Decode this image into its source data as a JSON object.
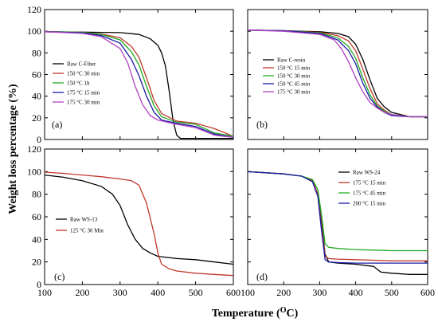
{
  "figure": {
    "ylabel": "Weight loss percentage (%)",
    "xlabel_main": "Temperature (",
    "xlabel_sup": "O",
    "xlabel_tail": "C)"
  },
  "chart_data": [
    {
      "type": "line",
      "panel_label": "(a)",
      "legend_location": "middle-left",
      "xlim": [
        100,
        600
      ],
      "ylim": [
        0,
        120
      ],
      "series": [
        {
          "name": "Raw C-Fiber",
          "color": "#000000",
          "x": [
            100,
            200,
            300,
            350,
            380,
            400,
            410,
            420,
            430,
            440,
            450,
            460,
            500,
            600
          ],
          "y": [
            99.5,
            99.2,
            98.7,
            97,
            93,
            87,
            80,
            68,
            45,
            18,
            4,
            1,
            1,
            1
          ]
        },
        {
          "name": "150 °C 30 min",
          "color": "#c0392b",
          "x": [
            100,
            200,
            250,
            300,
            330,
            350,
            370,
            390,
            410,
            450,
            500,
            550,
            600
          ],
          "y": [
            99.5,
            99,
            97.5,
            94,
            86,
            76,
            57,
            36,
            24,
            17,
            15,
            10,
            3
          ]
        },
        {
          "name": "150 °C 1h",
          "color": "#22aa22",
          "x": [
            100,
            200,
            250,
            300,
            330,
            350,
            370,
            390,
            410,
            450,
            500,
            550,
            600
          ],
          "y": [
            99.5,
            99,
            97,
            92,
            81,
            69,
            49,
            31,
            21,
            16,
            14,
            6,
            3
          ]
        },
        {
          "name": "175 °C 15 min",
          "color": "#1a1aa6",
          "x": [
            100,
            200,
            250,
            300,
            330,
            350,
            370,
            390,
            410,
            450,
            500,
            550,
            600
          ],
          "y": [
            99.5,
            98.5,
            96,
            89,
            74,
            59,
            40,
            25,
            18,
            15,
            12,
            5,
            2
          ]
        },
        {
          "name": "175 °C 30 min",
          "color": "#b040c0",
          "x": [
            100,
            200,
            250,
            300,
            320,
            340,
            360,
            380,
            400,
            450,
            500,
            550,
            600
          ],
          "y": [
            99.5,
            98,
            95,
            84,
            71,
            49,
            32,
            22,
            18,
            14,
            11,
            4,
            2
          ]
        }
      ]
    },
    {
      "type": "line",
      "panel_label": "(b)",
      "legend_location": "middle-left",
      "xlim": [
        100,
        600
      ],
      "ylim": [
        0,
        120
      ],
      "series": [
        {
          "name": "Raw C-resin",
          "color": "#000000",
          "x": [
            100,
            200,
            300,
            350,
            380,
            400,
            420,
            440,
            460,
            480,
            500,
            550,
            600
          ],
          "y": [
            101,
            100.5,
            99.5,
            98,
            95,
            88,
            74,
            55,
            38,
            30,
            25,
            21,
            21
          ]
        },
        {
          "name": "150 °C 15 min",
          "color": "#c0392b",
          "x": [
            100,
            200,
            300,
            350,
            380,
            400,
            420,
            440,
            460,
            480,
            500,
            550,
            600
          ],
          "y": [
            101,
            100.5,
            99,
            96,
            91,
            82,
            65,
            47,
            33,
            27,
            23,
            21,
            21
          ]
        },
        {
          "name": "150 °C 30 min",
          "color": "#22aa22",
          "x": [
            100,
            200,
            300,
            350,
            380,
            400,
            420,
            440,
            460,
            480,
            500,
            550,
            600
          ],
          "y": [
            101,
            100.5,
            98.5,
            94,
            86,
            75,
            57,
            41,
            31,
            26,
            23,
            21,
            21
          ]
        },
        {
          "name": "150 °C 45 min",
          "color": "#1a1aa6",
          "x": [
            100,
            200,
            300,
            350,
            380,
            400,
            420,
            440,
            460,
            480,
            500,
            550,
            600
          ],
          "y": [
            101,
            100.5,
            98,
            92,
            82,
            70,
            52,
            38,
            30,
            25,
            22,
            21,
            21
          ]
        },
        {
          "name": "175 °C 30 min",
          "color": "#b040c0",
          "x": [
            100,
            200,
            300,
            340,
            360,
            380,
            400,
            420,
            440,
            460,
            480,
            500,
            550,
            600
          ],
          "y": [
            101,
            100,
            97,
            92,
            84,
            72,
            57,
            44,
            34,
            29,
            25,
            23,
            21,
            21
          ]
        }
      ]
    },
    {
      "type": "line",
      "panel_label": "(c)",
      "legend_location": "middle-left",
      "xlim": [
        100,
        600
      ],
      "ylim": [
        0,
        120
      ],
      "series": [
        {
          "name": "Raw WS-13",
          "color": "#000000",
          "x": [
            100,
            150,
            200,
            250,
            280,
            300,
            320,
            340,
            360,
            380,
            400,
            450,
            500,
            550,
            600
          ],
          "y": [
            97,
            95,
            92,
            87,
            80,
            70,
            53,
            40,
            32,
            28,
            25,
            23,
            22,
            20,
            18
          ]
        },
        {
          "name": "125 °C 30 Min",
          "color": "#c0392b",
          "x": [
            100,
            150,
            200,
            250,
            300,
            330,
            350,
            370,
            390,
            400,
            410,
            430,
            450,
            500,
            550,
            600
          ],
          "y": [
            99.5,
            98.5,
            97,
            95.5,
            93.5,
            92,
            88,
            72,
            45,
            28,
            18,
            14,
            12,
            10,
            9,
            8
          ]
        }
      ]
    },
    {
      "type": "line",
      "panel_label": "(d)",
      "legend_location": "upper-right",
      "xlim": [
        100,
        600
      ],
      "ylim": [
        0,
        120
      ],
      "series": [
        {
          "name": "Raw WS-24",
          "color": "#000000",
          "x": [
            100,
            200,
            250,
            280,
            295,
            305,
            315,
            325,
            350,
            400,
            450,
            470,
            500,
            550,
            600
          ],
          "y": [
            100,
            98,
            96,
            92,
            80,
            55,
            27,
            20,
            19,
            18,
            16,
            11,
            10,
            9,
            9
          ]
        },
        {
          "name": "175 °C 15 min",
          "color": "#c0392b",
          "x": [
            100,
            200,
            250,
            280,
            295,
            305,
            315,
            325,
            350,
            400,
            450,
            500,
            550,
            600
          ],
          "y": [
            100,
            98,
            96,
            92,
            80,
            52,
            25,
            23,
            22.5,
            22,
            21.5,
            21,
            21,
            21
          ]
        },
        {
          "name": "175 °C 45 min",
          "color": "#22aa22",
          "x": [
            100,
            200,
            250,
            280,
            295,
            305,
            315,
            325,
            350,
            400,
            450,
            500,
            550,
            600
          ],
          "y": [
            100,
            98,
            96,
            93,
            84,
            62,
            36,
            33,
            32,
            31,
            30.5,
            30,
            30,
            30
          ]
        },
        {
          "name": "200 °C 15 min",
          "color": "#1a1aa6",
          "x": [
            100,
            200,
            250,
            280,
            295,
            305,
            315,
            325,
            350,
            400,
            450,
            500,
            550,
            600
          ],
          "y": [
            100,
            98,
            96,
            91,
            78,
            48,
            22,
            20,
            19.5,
            19,
            19,
            19,
            19,
            19
          ]
        }
      ]
    }
  ]
}
